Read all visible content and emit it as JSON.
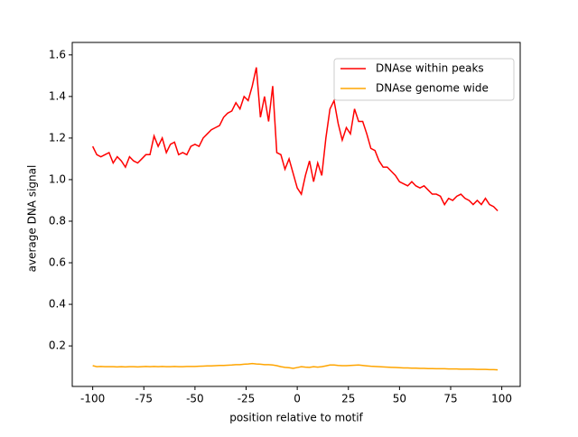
{
  "chart_data": {
    "type": "line",
    "xlabel": "position relative to motif",
    "ylabel": "average DNA signal",
    "x": [
      -100,
      -98,
      -96,
      -94,
      -92,
      -90,
      -88,
      -86,
      -84,
      -82,
      -80,
      -78,
      -76,
      -74,
      -72,
      -70,
      -68,
      -66,
      -64,
      -62,
      -60,
      -58,
      -56,
      -54,
      -52,
      -50,
      -48,
      -46,
      -44,
      -42,
      -40,
      -38,
      -36,
      -34,
      -32,
      -30,
      -28,
      -26,
      -24,
      -22,
      -20,
      -18,
      -16,
      -14,
      -12,
      -10,
      -8,
      -6,
      -4,
      -2,
      0,
      2,
      4,
      6,
      8,
      10,
      12,
      14,
      16,
      18,
      20,
      22,
      24,
      26,
      28,
      30,
      32,
      34,
      36,
      38,
      40,
      42,
      44,
      46,
      48,
      50,
      52,
      54,
      56,
      58,
      60,
      62,
      64,
      66,
      68,
      70,
      72,
      74,
      76,
      78,
      80,
      82,
      84,
      86,
      88,
      90,
      92,
      94,
      96,
      98
    ],
    "series": [
      {
        "name": "DNAse within peaks",
        "color": "#ff0000",
        "values": [
          1.16,
          1.12,
          1.11,
          1.12,
          1.13,
          1.08,
          1.11,
          1.09,
          1.06,
          1.11,
          1.09,
          1.08,
          1.1,
          1.12,
          1.12,
          1.21,
          1.16,
          1.2,
          1.13,
          1.17,
          1.18,
          1.12,
          1.13,
          1.12,
          1.16,
          1.17,
          1.16,
          1.2,
          1.22,
          1.24,
          1.25,
          1.26,
          1.3,
          1.32,
          1.33,
          1.37,
          1.34,
          1.4,
          1.38,
          1.45,
          1.54,
          1.3,
          1.4,
          1.28,
          1.45,
          1.13,
          1.12,
          1.05,
          1.1,
          1.03,
          0.96,
          0.93,
          1.02,
          1.09,
          0.99,
          1.08,
          1.02,
          1.2,
          1.34,
          1.38,
          1.27,
          1.19,
          1.25,
          1.22,
          1.34,
          1.28,
          1.28,
          1.22,
          1.15,
          1.14,
          1.09,
          1.06,
          1.06,
          1.04,
          1.02,
          0.99,
          0.98,
          0.97,
          0.99,
          0.97,
          0.96,
          0.97,
          0.95,
          0.93,
          0.93,
          0.92,
          0.88,
          0.91,
          0.9,
          0.92,
          0.93,
          0.91,
          0.9,
          0.88,
          0.9,
          0.88,
          0.91,
          0.88,
          0.87,
          0.85
        ]
      },
      {
        "name": "DNAse genome wide",
        "color": "#ffa500",
        "values": [
          0.105,
          0.1,
          0.101,
          0.1,
          0.1,
          0.1,
          0.099,
          0.1,
          0.099,
          0.1,
          0.1,
          0.099,
          0.1,
          0.101,
          0.1,
          0.101,
          0.1,
          0.101,
          0.1,
          0.1,
          0.101,
          0.1,
          0.1,
          0.101,
          0.101,
          0.101,
          0.102,
          0.103,
          0.104,
          0.104,
          0.105,
          0.106,
          0.106,
          0.107,
          0.108,
          0.11,
          0.11,
          0.112,
          0.113,
          0.115,
          0.113,
          0.112,
          0.11,
          0.11,
          0.108,
          0.105,
          0.1,
          0.097,
          0.095,
          0.092,
          0.096,
          0.1,
          0.098,
          0.097,
          0.1,
          0.098,
          0.1,
          0.104,
          0.108,
          0.108,
          0.106,
          0.105,
          0.105,
          0.106,
          0.107,
          0.108,
          0.106,
          0.104,
          0.102,
          0.101,
          0.1,
          0.099,
          0.098,
          0.097,
          0.096,
          0.095,
          0.094,
          0.094,
          0.093,
          0.093,
          0.092,
          0.092,
          0.091,
          0.091,
          0.09,
          0.09,
          0.09,
          0.089,
          0.089,
          0.089,
          0.088,
          0.088,
          0.088,
          0.088,
          0.087,
          0.087,
          0.087,
          0.086,
          0.086,
          0.085
        ]
      }
    ],
    "xlim": [
      -110,
      109
    ],
    "ylim": [
      0.005,
      1.66
    ],
    "xticks": [
      -100,
      -75,
      -50,
      -25,
      0,
      25,
      50,
      75,
      100
    ],
    "yticks": [
      0.2,
      0.4,
      0.6,
      0.8,
      {
        "value": 1.0,
        "label": "1.0"
      },
      1.2,
      1.4,
      1.6
    ],
    "legend": "upper right",
    "grid": false
  }
}
